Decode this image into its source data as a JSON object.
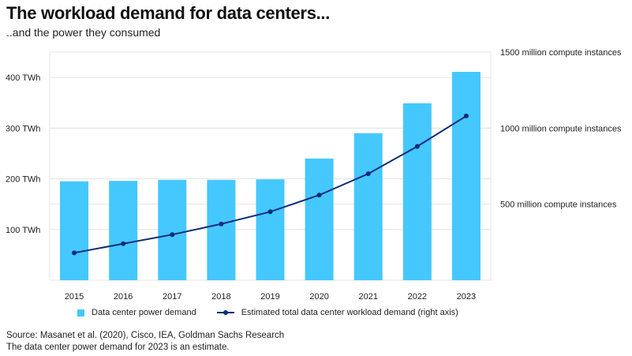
{
  "header": {
    "title": "The workload demand for data centers...",
    "subtitle": "..and the power they consumed"
  },
  "colors": {
    "bar": "#44c8fd",
    "line": "#0d2b7a",
    "grid": "#e4e4e4"
  },
  "chart_data": {
    "type": "bar",
    "categories": [
      "2015",
      "2016",
      "2017",
      "2018",
      "2019",
      "2020",
      "2021",
      "2022",
      "2023"
    ],
    "series": [
      {
        "name": "Data center power demand",
        "type": "bar",
        "axis": "left",
        "values": [
          195,
          196,
          198,
          198,
          199,
          240,
          290,
          349,
          411
        ]
      },
      {
        "name": "Estimated total data center workload demand (right axis)",
        "type": "line",
        "axis": "right",
        "values": [
          180,
          240,
          300,
          370,
          450,
          560,
          700,
          880,
          1080
        ]
      }
    ],
    "left_axis": {
      "ylim": [
        0,
        450
      ],
      "ticks": [
        100,
        200,
        300,
        400
      ],
      "tick_labels": [
        "100 TWh",
        "200 TWh",
        "300 TWh",
        "400 TWh"
      ]
    },
    "right_axis": {
      "ylim": [
        0,
        1500
      ],
      "ticks": [
        500,
        1000,
        1500
      ],
      "tick_labels": [
        "500 million compute instances",
        "1000 million compute instances",
        "1500 million compute instances"
      ]
    },
    "grid": true,
    "legend": "bottom"
  },
  "footer": {
    "source": "Source: Masanet et al. (2020), Cisco, IEA, Goldman Sachs Research",
    "note": "The data center power demand for 2023 is an estimate."
  }
}
